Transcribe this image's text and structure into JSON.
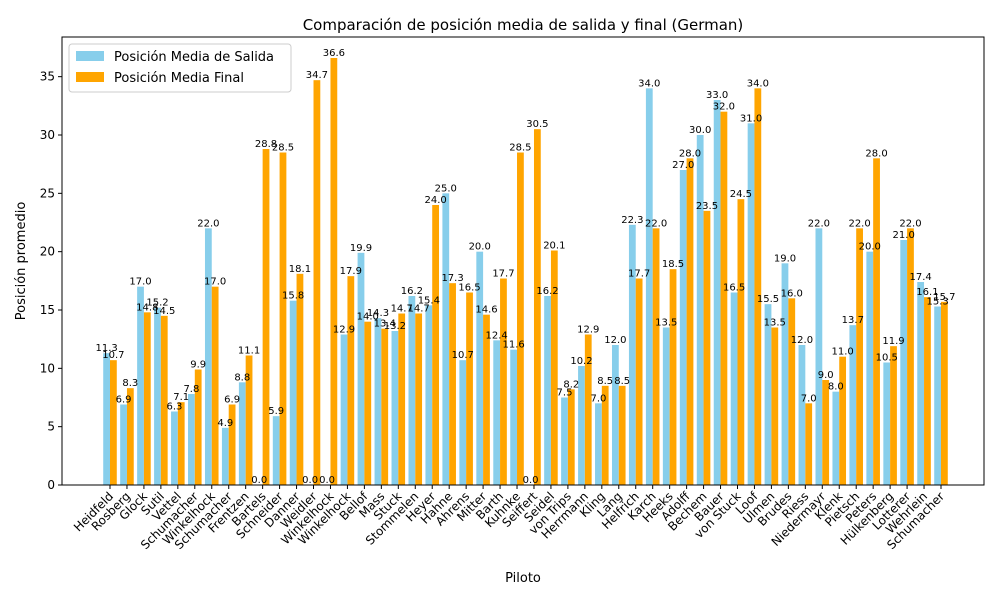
{
  "chart_data": {
    "type": "bar",
    "title": "Comparación de posición media de salida y final (German)",
    "xlabel": "Piloto",
    "ylabel": "Posición promedio",
    "ylim": [
      0,
      38.4
    ],
    "yticks": [
      0,
      5,
      10,
      15,
      20,
      25,
      30,
      35
    ],
    "grid": false,
    "legend_position": "top-left",
    "categories": [
      "Heidfeld",
      "Rosberg",
      "Glock",
      "Sutil",
      "Vettel",
      "Schumacher",
      "Winkelhock",
      "Schumacher",
      "Frentzen",
      "Bartels",
      "Schneider",
      "Danner",
      "Weidler",
      "Winkelhock",
      "Winkelhock",
      "Bellof",
      "Mass",
      "Stuck",
      "Stommelen",
      "Heyer",
      "Hahne",
      "Ahrens",
      "Mitter",
      "Barth",
      "Kuhnke",
      "Seiffert",
      "Seidel",
      "von Trips",
      "Herrmann",
      "Kling",
      "Lang",
      "Helfrich",
      "Karch",
      "Heeks",
      "Adolff",
      "Bechem",
      "Bauer",
      "von Stuck",
      "Loof",
      "Ulmen",
      "Brudes",
      "Riess",
      "Niedermayr",
      "Klenk",
      "Pietsch",
      "Peters",
      "Hülkenberg",
      "Lotterer",
      "Wehrlein",
      "Schumacher"
    ],
    "series": [
      {
        "name": "Posición Media de Salida",
        "color": "#87ceeb",
        "values": [
          11.3,
          6.9,
          17.0,
          15.2,
          6.3,
          7.8,
          22.0,
          4.9,
          8.8,
          0.0,
          5.9,
          15.8,
          0.0,
          0.0,
          12.9,
          19.9,
          14.3,
          13.2,
          16.2,
          15.4,
          25.0,
          10.7,
          20.0,
          12.4,
          11.6,
          0.0,
          16.2,
          7.5,
          10.2,
          7.0,
          12.0,
          22.3,
          34.0,
          13.5,
          27.0,
          30.0,
          33.0,
          16.5,
          31.0,
          15.5,
          19.0,
          12.0,
          22.0,
          8.0,
          13.7,
          20.0,
          10.5,
          21.0,
          17.4,
          15.3
        ]
      },
      {
        "name": "Posición Media Final",
        "color": "#ffa500",
        "values": [
          10.7,
          8.3,
          14.8,
          14.5,
          7.1,
          9.9,
          17.0,
          6.9,
          11.1,
          28.8,
          28.5,
          18.1,
          34.7,
          36.6,
          17.9,
          14.0,
          13.4,
          14.7,
          14.7,
          24.0,
          17.3,
          16.5,
          14.6,
          17.7,
          28.5,
          30.5,
          20.1,
          8.2,
          12.9,
          8.5,
          8.5,
          17.7,
          22.0,
          18.5,
          28.0,
          23.5,
          32.0,
          24.5,
          34.0,
          13.5,
          16.0,
          7.0,
          9.0,
          11.0,
          22.0,
          28.0,
          11.9,
          22.0,
          16.1,
          15.7
        ]
      }
    ]
  }
}
